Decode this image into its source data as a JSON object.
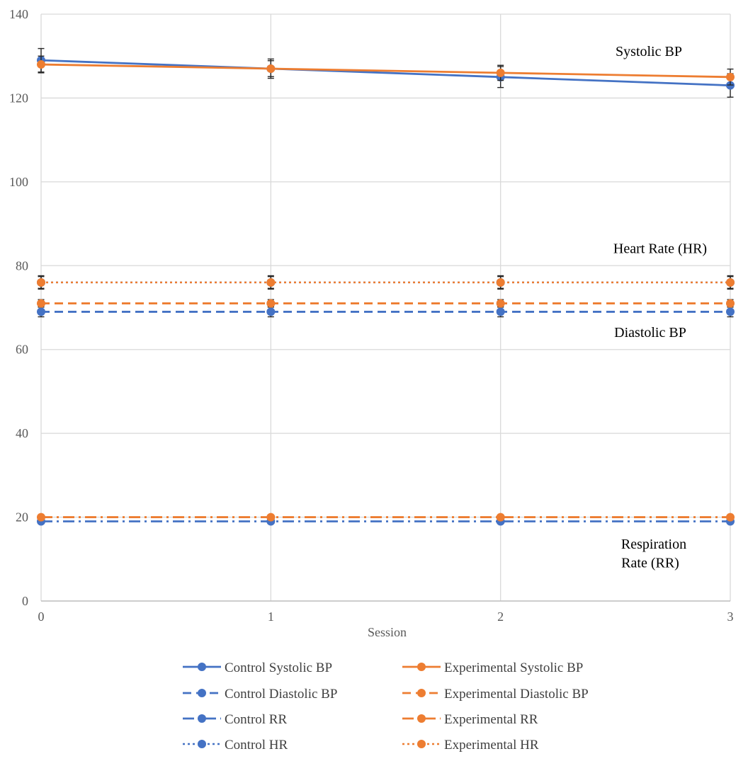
{
  "chart_data": {
    "type": "line",
    "title": "",
    "xlabel": "Session",
    "ylabel": "",
    "x": [
      0,
      1,
      2,
      3
    ],
    "xlim": [
      0,
      3
    ],
    "ylim": [
      0,
      140
    ],
    "yticks": [
      0,
      20,
      40,
      60,
      80,
      100,
      120,
      140
    ],
    "xticks": [
      0,
      1,
      2,
      3
    ],
    "grid": true,
    "legend_position": "bottom",
    "series": [
      {
        "name": "Control Systolic BP",
        "group": "control",
        "dash": "solid",
        "values": [
          129,
          127,
          125,
          123
        ],
        "errors": [
          2.8,
          2.3,
          2.5,
          2.8
        ],
        "color": "#4472C4"
      },
      {
        "name": "Experimental Systolic BP",
        "group": "experimental",
        "dash": "solid",
        "values": [
          128,
          127,
          126,
          125
        ],
        "errors": [
          2.0,
          1.9,
          1.8,
          1.9
        ],
        "color": "#ED7D31"
      },
      {
        "name": "Control Diastolic BP",
        "group": "control",
        "dash": "dash",
        "values": [
          69,
          69,
          69,
          69
        ],
        "errors": [
          1.2,
          1.2,
          1.2,
          1.2
        ],
        "color": "#4472C4"
      },
      {
        "name": "Experimental Diastolic BP",
        "group": "experimental",
        "dash": "dash",
        "values": [
          71,
          71,
          71,
          71
        ],
        "errors": [
          0.9,
          0.9,
          0.9,
          0.9
        ],
        "color": "#ED7D31"
      },
      {
        "name": "Control RR",
        "group": "control",
        "dash": "dashdot",
        "values": [
          19,
          19,
          19,
          19
        ],
        "errors": [
          0,
          0,
          0,
          0
        ],
        "color": "#4472C4"
      },
      {
        "name": "Experimental RR",
        "group": "experimental",
        "dash": "dashdot",
        "values": [
          20,
          20,
          20,
          20
        ],
        "errors": [
          0,
          0,
          0,
          0
        ],
        "color": "#ED7D31"
      },
      {
        "name": "Control HR",
        "group": "control",
        "dash": "dot",
        "values": [
          76,
          76,
          76,
          76
        ],
        "errors": [
          1.6,
          1.6,
          1.6,
          1.6
        ],
        "color": "#4472C4"
      },
      {
        "name": "Experimental HR",
        "group": "experimental",
        "dash": "dot",
        "values": [
          76,
          76,
          76,
          76
        ],
        "errors": [
          1.4,
          1.4,
          1.4,
          1.4
        ],
        "color": "#ED7D31"
      }
    ],
    "annotations": [
      {
        "text": "Systolic BP",
        "at_y": 130
      },
      {
        "text": "Heart Rate (HR)",
        "at_y": 83
      },
      {
        "text": "Diastolic BP",
        "at_y": 63
      },
      {
        "text": "Respiration",
        "at_y": 12.5
      },
      {
        "text": "Rate (RR)",
        "at_y": 8
      }
    ]
  }
}
